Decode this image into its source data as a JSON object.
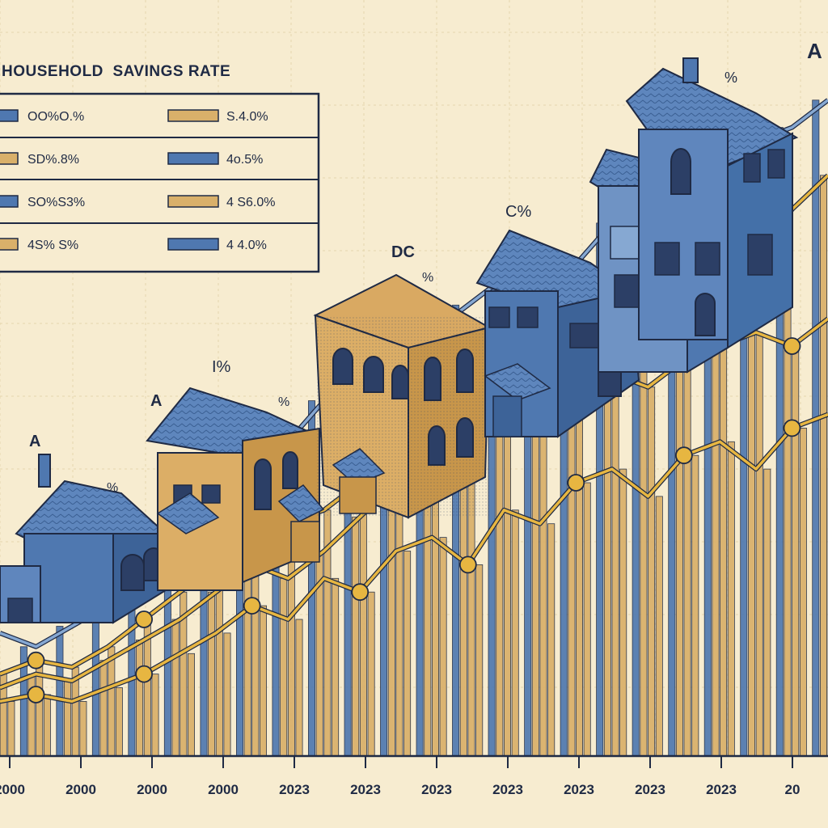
{
  "title": "HOUSEHOLD  SAVINGS RATE",
  "legend": [
    {
      "text": "OO%O.%",
      "swatch": "blue"
    },
    {
      "text": "S.4.0%",
      "swatch": "tan"
    },
    {
      "text": "SD%.8%",
      "swatch": "tan"
    },
    {
      "text": "4o.5%",
      "swatch": "blue"
    },
    {
      "text": "SO%S3%",
      "swatch": "blue"
    },
    {
      "text": "4 S6.0%",
      "swatch": "tan"
    },
    {
      "text": "4S% S%",
      "swatch": "tan"
    },
    {
      "text": "4 4.0%",
      "swatch": "blue"
    }
  ],
  "house_labels": [
    {
      "text": "A",
      "house": 0
    },
    {
      "text": "%",
      "house": 0
    },
    {
      "text": "A",
      "house": 1
    },
    {
      "text": "I%",
      "house": 1
    },
    {
      "text": "%",
      "house": 1
    },
    {
      "text": "DC",
      "house": 2
    },
    {
      "text": "%",
      "house": 2
    },
    {
      "text": "C%",
      "house": 3
    },
    {
      "text": "%",
      "house": 4
    },
    {
      "text": "A",
      "house": 5
    }
  ],
  "colors": {
    "background": "#f7ecd0",
    "blue": "#4f78b0",
    "blue_light": "#86a8d2",
    "tan": "#d9b06a",
    "tan_dark": "#c8964a",
    "ink": "#1f2a44",
    "gold": "#e7b641"
  },
  "chart_data": {
    "type": "bar",
    "title": "HOUSEHOLD  SAVINGS RATE",
    "x_tick_labels": [
      "2000",
      "2000",
      "2000",
      "2000",
      "2023",
      "2023",
      "2023",
      "2023",
      "2023",
      "2023",
      "2023",
      "20"
    ],
    "grid": true,
    "legend_position": "top-left",
    "series": [
      {
        "swatch": "blue",
        "values": [
          18,
          16,
          19,
          22,
          25,
          30,
          34,
          42,
          46,
          52,
          55,
          60,
          62,
          66,
          70,
          68,
          72,
          78,
          82,
          80,
          86,
          90,
          92,
          96
        ]
      },
      {
        "swatch": "tan",
        "values": [
          10,
          12,
          11,
          14,
          17,
          20,
          24,
          28,
          26,
          30,
          35,
          40,
          44,
          50,
          48,
          55,
          60,
          58,
          66,
          70,
          74,
          72,
          80,
          85
        ]
      },
      {
        "swatch": "tan",
        "values": [
          12,
          14,
          13,
          16,
          20,
          24,
          28,
          30,
          34,
          36,
          40,
          44,
          46,
          48,
          50,
          52,
          54,
          56,
          54,
          58,
          60,
          62,
          60,
          64
        ]
      },
      {
        "swatch": "tan",
        "values": [
          8,
          9,
          8,
          10,
          12,
          15,
          18,
          22,
          20,
          26,
          24,
          30,
          32,
          28,
          36,
          34,
          40,
          42,
          38,
          44,
          46,
          42,
          48,
          50
        ]
      }
    ]
  }
}
